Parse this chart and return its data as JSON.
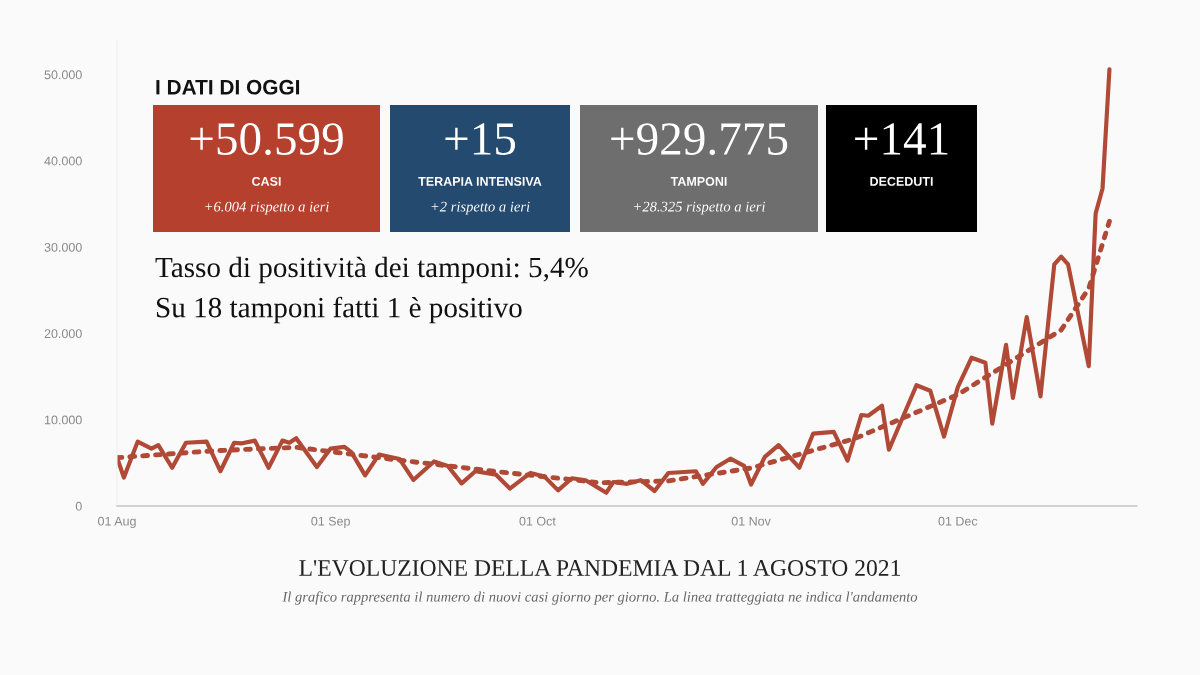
{
  "chart_data": [
    {
      "type": "line",
      "title": "L'EVOLUZIONE DELLA PANDEMIA DAL 1 AGOSTO 2021",
      "subtitle": "Il grafico rappresenta il numero di nuovi casi giorno per giorno. La linea tratteggiata ne indica l'andamento",
      "xlim": [
        "2021-08-01",
        "2021-12-27"
      ],
      "ylim": [
        0,
        54000
      ],
      "xticks": [
        {
          "value": "2021-08-01",
          "label": "01 Aug"
        },
        {
          "value": "2021-09-01",
          "label": "01 Sep"
        },
        {
          "value": "2021-10-01",
          "label": "01 Oct"
        },
        {
          "value": "2021-11-01",
          "label": "01 Nov"
        },
        {
          "value": "2021-12-01",
          "label": "01 Dec"
        }
      ],
      "yticks": [
        0,
        {
          "value": 10000,
          "label": "10.000"
        },
        {
          "value": 20000,
          "label": "20.000"
        },
        {
          "value": 30000,
          "label": "30.000"
        },
        {
          "value": 40000,
          "label": "40.000"
        },
        {
          "value": 50000,
          "label": "50.000"
        }
      ],
      "grid": false,
      "marker": "none",
      "series": [
        {
          "color": "#b04a36",
          "line_style": "solid",
          "x": [
            "2021-08-01",
            "2021-08-02",
            "2021-08-04",
            "2021-08-06",
            "2021-08-07",
            "2021-08-09",
            "2021-08-11",
            "2021-08-14",
            "2021-08-16",
            "2021-08-18",
            "2021-08-19",
            "2021-08-21",
            "2021-08-23",
            "2021-08-25",
            "2021-08-26",
            "2021-08-27",
            "2021-08-30",
            "2021-09-01",
            "2021-09-03",
            "2021-09-04",
            "2021-09-06",
            "2021-09-08",
            "2021-09-11",
            "2021-09-13",
            "2021-09-16",
            "2021-09-18",
            "2021-09-20",
            "2021-09-22",
            "2021-09-25",
            "2021-09-27",
            "2021-09-30",
            "2021-10-02",
            "2021-10-04",
            "2021-10-06",
            "2021-10-08",
            "2021-10-11",
            "2021-10-12",
            "2021-10-14",
            "2021-10-16",
            "2021-10-18",
            "2021-10-20",
            "2021-10-24",
            "2021-10-25",
            "2021-10-27",
            "2021-10-29",
            "2021-10-31",
            "2021-11-01",
            "2021-11-03",
            "2021-11-05",
            "2021-11-08",
            "2021-11-10",
            "2021-11-13",
            "2021-11-15",
            "2021-11-17",
            "2021-11-18",
            "2021-11-20",
            "2021-11-21",
            "2021-11-25",
            "2021-11-27",
            "2021-11-29",
            "2021-12-01",
            "2021-12-03",
            "2021-12-05",
            "2021-12-06",
            "2021-12-08",
            "2021-12-09",
            "2021-12-11",
            "2021-12-13",
            "2021-12-15",
            "2021-12-16",
            "2021-12-17",
            "2021-12-20",
            "2021-12-21",
            "2021-12-22",
            "2021-12-23"
          ],
          "values": [
            5640,
            3300,
            7460,
            6650,
            7050,
            4430,
            7330,
            7460,
            4030,
            7330,
            7250,
            7580,
            4430,
            7580,
            7330,
            7860,
            4510,
            6650,
            6850,
            6250,
            3550,
            5960,
            5440,
            3020,
            5160,
            4630,
            2620,
            4030,
            3630,
            2020,
            3830,
            3430,
            1810,
            3220,
            2990,
            1540,
            2780,
            2570,
            2990,
            1740,
            3820,
            4030,
            2570,
            4520,
            5480,
            4650,
            2490,
            5690,
            7060,
            4440,
            8380,
            8590,
            5270,
            10540,
            10460,
            11620,
            6520,
            13990,
            13360,
            8050,
            13780,
            17180,
            16600,
            9550,
            18680,
            12530,
            21900,
            12700,
            28000,
            28900,
            28000,
            16200,
            33900,
            36800,
            50600
          ]
        },
        {
          "color": "#b04a36",
          "line_style": "dotted",
          "x": [
            "2021-08-01",
            "2021-08-15",
            "2021-08-27",
            "2021-09-10",
            "2021-09-25",
            "2021-10-10",
            "2021-10-20",
            "2021-11-01",
            "2021-11-16",
            "2021-12-01",
            "2021-12-16",
            "2021-12-20",
            "2021-12-23"
          ],
          "values": [
            5600,
            6400,
            6800,
            5400,
            4000,
            2700,
            2900,
            4400,
            7800,
            12900,
            20400,
            25200,
            33000
          ]
        }
      ]
    },
    {
      "type": "other",
      "title": "I DATI DI OGGI",
      "annotations": [
        "Tasso di positività dei tamponi: 5,4%",
        "Su 18 tamponi fatti 1 è positivo"
      ]
    },
    {
      "type": "other",
      "title": "+50.599",
      "subtitle": "CASI",
      "annotations": [
        "+6.004 rispetto a ieri"
      ],
      "colors": [
        "#b5402e"
      ]
    },
    {
      "type": "other",
      "title": "+15",
      "subtitle": "TERAPIA INTENSIVA",
      "annotations": [
        "+2 rispetto a ieri"
      ],
      "colors": [
        "#244a70"
      ]
    },
    {
      "type": "other",
      "title": "+929.775",
      "subtitle": "TAMPONI",
      "annotations": [
        "+28.325 rispetto a ieri"
      ],
      "colors": [
        "#6e6e6e"
      ]
    },
    {
      "type": "other",
      "title": "+141",
      "subtitle": "DECEDUTI",
      "colors": [
        "#000000"
      ]
    }
  ]
}
